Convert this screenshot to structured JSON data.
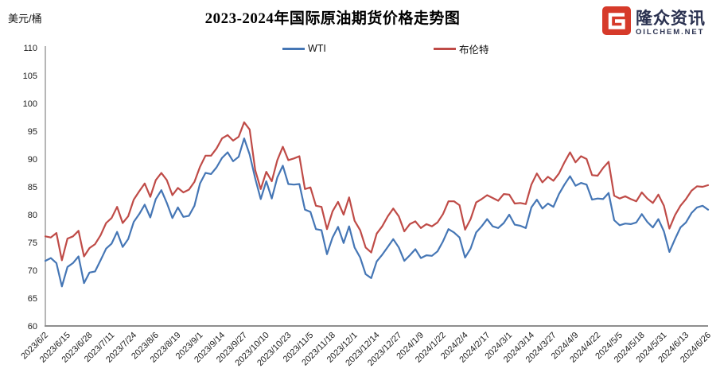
{
  "header": {
    "y_axis_unit": "美元/桶"
  },
  "logo": {
    "brand": "隆众资讯",
    "domain": "OILCHEM.NET",
    "icon_color": "#d63a2a",
    "text_color": "#2a3150"
  },
  "chart_data": {
    "type": "line",
    "title": "2023-2024年国际原油期货价格走势图",
    "y_unit": "美元/桶",
    "xlabel": "",
    "ylabel": "美元/桶",
    "ylim": [
      60,
      110
    ],
    "y_step": 5,
    "grid": false,
    "legend_position": "top",
    "x_tick_labels": [
      "2023/6/2",
      "2023/6/15",
      "2023/6/28",
      "2023/7/11",
      "2023/7/24",
      "2023/8/6",
      "2023/8/19",
      "2023/9/1",
      "2023/9/14",
      "2023/9/27",
      "2023/10/10",
      "2023/10/23",
      "2023/11/5",
      "2023/11/18",
      "2023/12/1",
      "2023/12/14",
      "2023/12/27",
      "2024/1/9",
      "2024/1/22",
      "2024/2/4",
      "2024/2/17",
      "2024/3/1",
      "2024/3/14",
      "2024/3/27",
      "2024/4/9",
      "2024/4/22",
      "2024/5/5",
      "2024/5/18",
      "2024/5/31",
      "2024/6/13",
      "2024/6/26"
    ],
    "points_per_tick": 4,
    "series": [
      {
        "name": "WTI",
        "color": "#4576b5",
        "values": [
          71.7,
          72.2,
          71.3,
          67.1,
          70.6,
          71.3,
          72.5,
          67.7,
          69.6,
          69.8,
          71.8,
          73.9,
          74.8,
          76.9,
          74.2,
          75.6,
          78.7,
          80.1,
          81.8,
          79.5,
          82.8,
          84.4,
          82.1,
          79.4,
          81.3,
          79.6,
          79.8,
          81.6,
          85.6,
          87.5,
          87.3,
          88.5,
          90.2,
          91.2,
          89.6,
          90.4,
          93.7,
          90.8,
          86.5,
          82.8,
          86.0,
          82.9,
          86.7,
          88.8,
          85.5,
          85.4,
          85.5,
          80.9,
          80.5,
          77.4,
          77.2,
          72.9,
          75.9,
          77.8,
          74.9,
          77.9,
          74.1,
          72.3,
          69.3,
          68.6,
          71.6,
          72.8,
          74.2,
          75.6,
          74.1,
          71.7,
          72.7,
          73.8,
          72.2,
          72.7,
          72.6,
          73.4,
          75.2,
          77.4,
          76.8,
          75.9,
          72.3,
          73.9,
          76.8,
          77.9,
          79.2,
          77.9,
          77.6,
          78.5,
          80.0,
          78.2,
          78.0,
          77.6,
          81.3,
          82.7,
          81.1,
          82.0,
          81.4,
          83.7,
          85.4,
          86.9,
          85.2,
          85.7,
          85.4,
          82.7,
          82.9,
          82.8,
          83.9,
          79.0,
          78.1,
          78.4,
          78.3,
          78.6,
          80.1,
          78.7,
          77.7,
          79.2,
          77.0,
          73.3,
          75.6,
          77.7,
          78.6,
          80.3,
          81.3,
          81.6,
          80.9
        ]
      },
      {
        "name": "布伦特",
        "color": "#bf4b47",
        "values": [
          76.1,
          75.9,
          76.7,
          71.8,
          75.7,
          76.1,
          77.1,
          72.5,
          74.0,
          74.7,
          76.3,
          78.5,
          79.4,
          81.4,
          78.5,
          79.7,
          82.7,
          84.2,
          85.6,
          83.2,
          86.2,
          87.5,
          86.2,
          83.5,
          84.8,
          84.0,
          84.5,
          85.9,
          88.6,
          90.6,
          90.6,
          91.9,
          93.7,
          94.3,
          93.3,
          94.0,
          96.6,
          95.3,
          88.0,
          84.6,
          87.7,
          86.0,
          89.8,
          92.2,
          89.8,
          90.1,
          90.5,
          84.6,
          84.9,
          81.6,
          81.4,
          77.4,
          80.6,
          82.3,
          80.0,
          83.1,
          78.9,
          77.2,
          74.1,
          73.2,
          76.6,
          77.9,
          79.7,
          81.1,
          79.7,
          77.0,
          78.3,
          78.8,
          77.6,
          78.3,
          77.9,
          78.6,
          80.1,
          82.4,
          82.4,
          81.7,
          77.3,
          79.2,
          82.2,
          82.8,
          83.5,
          83.0,
          82.5,
          83.7,
          83.6,
          82.0,
          82.1,
          81.9,
          85.4,
          87.4,
          85.8,
          86.8,
          86.1,
          87.4,
          89.4,
          91.2,
          89.4,
          90.5,
          90.0,
          87.1,
          87.0,
          88.4,
          89.5,
          83.4,
          82.9,
          83.3,
          82.8,
          82.4,
          84.0,
          82.9,
          82.1,
          83.6,
          81.6,
          77.5,
          79.9,
          81.6,
          82.8,
          84.3,
          85.1,
          85.0,
          85.3
        ]
      }
    ]
  }
}
